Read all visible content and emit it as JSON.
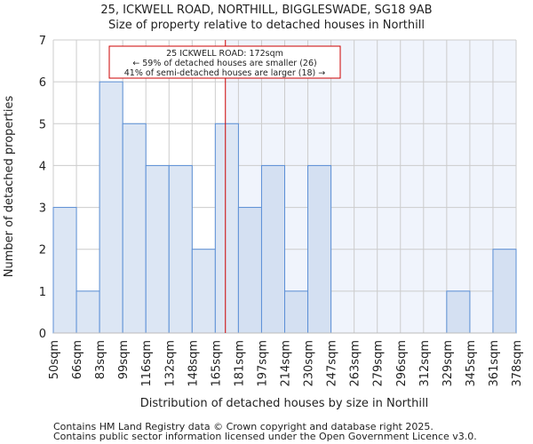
{
  "chart_data": {
    "type": "bar",
    "title": "25, ICKWELL ROAD, NORTHILL, BIGGLESWADE, SG18 9AB",
    "subtitle": "Size of property relative to detached houses in Northill",
    "xlabel": "Distribution of detached houses by size in Northill",
    "ylabel": "Number of detached properties",
    "bin_edges": [
      50,
      66,
      83,
      99,
      116,
      132,
      148,
      165,
      181,
      197,
      214,
      230,
      247,
      263,
      279,
      296,
      312,
      329,
      345,
      361,
      378
    ],
    "tick_labels": [
      "50sqm",
      "66sqm",
      "83sqm",
      "99sqm",
      "116sqm",
      "132sqm",
      "148sqm",
      "165sqm",
      "181sqm",
      "197sqm",
      "214sqm",
      "230sqm",
      "247sqm",
      "263sqm",
      "279sqm",
      "296sqm",
      "312sqm",
      "329sqm",
      "345sqm",
      "361sqm",
      "378sqm"
    ],
    "values": [
      3,
      1,
      6,
      5,
      4,
      4,
      2,
      5,
      3,
      4,
      1,
      4,
      0,
      0,
      0,
      0,
      0,
      1,
      0,
      2
    ],
    "ylim": [
      0,
      7
    ],
    "yticks": [
      0,
      1,
      2,
      3,
      4,
      5,
      6,
      7
    ],
    "grid": true,
    "marker": {
      "value": 172,
      "color": "#cc0000",
      "label_lines": [
        "25 ICKWELL ROAD: 172sqm",
        "← 59% of detached houses are smaller (26)",
        "41% of semi-detached houses are larger (18) →"
      ]
    },
    "colors": {
      "bar_fill": "#dce6f4",
      "bar_fill_right": "#d4e0f2",
      "bar_stroke": "#5b8fd6",
      "shade": "#f0f4fc",
      "grid": "#cccccc"
    }
  },
  "footer": {
    "line1": "Contains HM Land Registry data © Crown copyright and database right 2025.",
    "line2": "Contains public sector information licensed under the Open Government Licence v3.0."
  }
}
